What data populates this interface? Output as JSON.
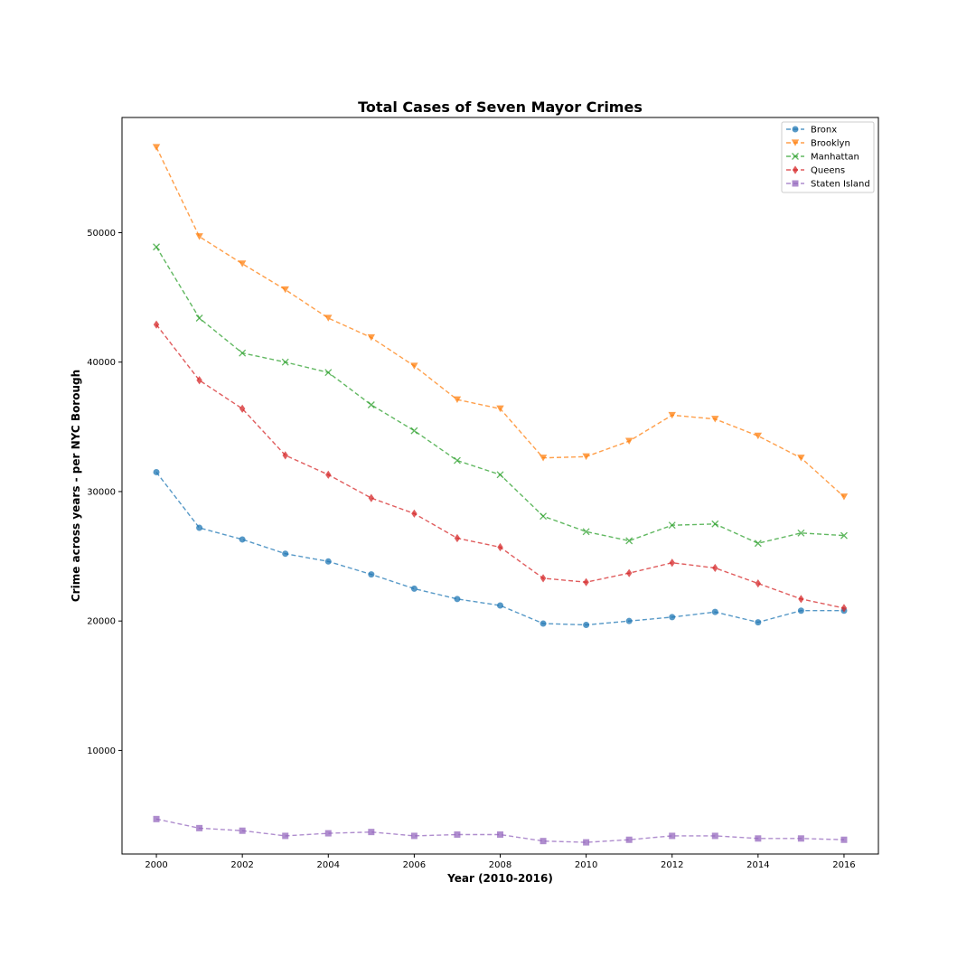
{
  "chart_data": {
    "type": "line",
    "title": "Total Cases of Seven Mayor Crimes",
    "xlabel": "Year (2010-2016)",
    "ylabel": "Crime across years -  per NYC Borough",
    "x": [
      2000,
      2001,
      2002,
      2003,
      2004,
      2005,
      2006,
      2007,
      2008,
      2009,
      2010,
      2011,
      2012,
      2013,
      2014,
      2015,
      2016
    ],
    "xlim": [
      1999.2,
      2016.8
    ],
    "ylim": [
      2000,
      58900
    ],
    "x_ticks": [
      "2000",
      "2002",
      "2004",
      "2006",
      "2008",
      "2010",
      "2012",
      "2014",
      "2016"
    ],
    "y_ticks": [
      "10000",
      "20000",
      "30000",
      "40000",
      "50000"
    ],
    "grid": false,
    "legend_position": "top-right",
    "line_style": "dashed",
    "series": [
      {
        "name": "Bronx",
        "color": "#1f77b4",
        "marker": "circle",
        "values": [
          31500,
          27200,
          26300,
          25200,
          24600,
          23600,
          22500,
          21700,
          21200,
          19800,
          19700,
          20000,
          20300,
          20700,
          19900,
          20800,
          20800
        ]
      },
      {
        "name": "Brooklyn",
        "color": "#ff7f0e",
        "marker": "triangle-down",
        "values": [
          56600,
          49700,
          47600,
          45600,
          43400,
          41900,
          39700,
          37100,
          36400,
          32600,
          32700,
          33900,
          35900,
          35600,
          34300,
          32600,
          29600
        ]
      },
      {
        "name": "Manhattan",
        "color": "#2ca02c",
        "marker": "x",
        "values": [
          48900,
          43400,
          40700,
          40000,
          39200,
          36700,
          34700,
          32400,
          31300,
          28100,
          26900,
          26200,
          27400,
          27500,
          26000,
          26800,
          26600
        ]
      },
      {
        "name": "Queens",
        "color": "#d62728",
        "marker": "diamond",
        "values": [
          42900,
          38600,
          36400,
          32800,
          31300,
          29500,
          28300,
          26400,
          25700,
          23300,
          23000,
          23700,
          24500,
          24100,
          22900,
          21700,
          21000
        ]
      },
      {
        "name": "Staten Island",
        "color": "#9467bd",
        "marker": "square",
        "values": [
          4700,
          4000,
          3800,
          3400,
          3600,
          3700,
          3400,
          3500,
          3500,
          3000,
          2900,
          3100,
          3400,
          3400,
          3200,
          3200,
          3100
        ]
      }
    ]
  }
}
